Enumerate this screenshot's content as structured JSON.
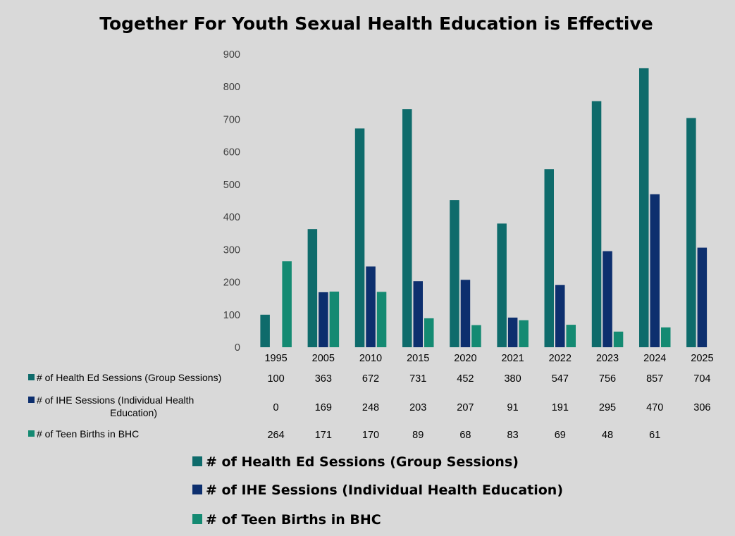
{
  "chart_data": {
    "type": "bar",
    "title": "Together For Youth Sexual Health Education is Effective",
    "categories": [
      "1995",
      "2005",
      "2010",
      "2015",
      "2020",
      "2021",
      "2022",
      "2023",
      "2024",
      "2025"
    ],
    "series": [
      {
        "name": "# of Health Ed Sessions (Group Sessions)",
        "table_label": [
          "# of Health Ed Sessions (Group Sessions)"
        ],
        "color": "#0e6b6b",
        "values": [
          100,
          363,
          672,
          731,
          452,
          380,
          547,
          756,
          857,
          704
        ]
      },
      {
        "name": "# of IHE Sessions (Individual Health Education)",
        "table_label": [
          "# of IHE Sessions (Individual Health",
          "Education)"
        ],
        "color": "#0d2f6e",
        "values": [
          0,
          169,
          248,
          203,
          207,
          91,
          191,
          295,
          470,
          306
        ]
      },
      {
        "name": "# of Teen Births in BHC",
        "table_label": [
          "# of Teen Births in BHC"
        ],
        "color": "#148a72",
        "values": [
          264,
          171,
          170,
          89,
          68,
          83,
          69,
          48,
          61,
          null
        ]
      }
    ],
    "ylim": [
      0,
      900
    ],
    "yticks": [
      0,
      100,
      200,
      300,
      400,
      500,
      600,
      700,
      800,
      900
    ],
    "grid": false,
    "data_table": true,
    "legend": "bottom"
  }
}
